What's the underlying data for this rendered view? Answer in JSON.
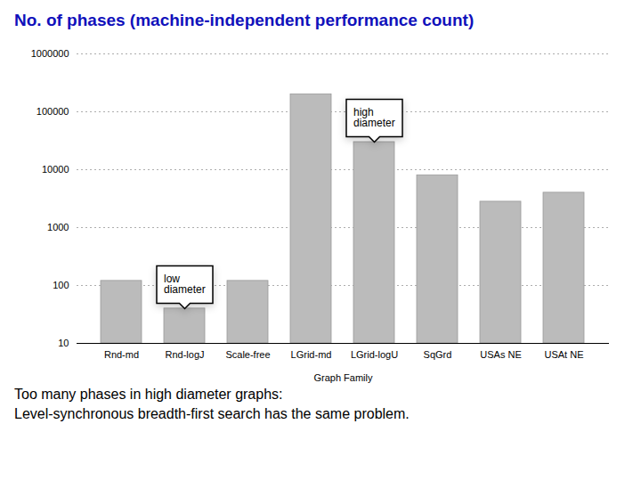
{
  "chart_data": {
    "type": "bar",
    "title": "No. of phases (machine-independent performance count)",
    "xlabel": "Graph Family",
    "categories": [
      "Rnd-md",
      "Rnd-logJ",
      "Scale-free",
      "LGrid-md",
      "LGrid-logU",
      "SqGrd",
      "USAs NE",
      "USAt NE"
    ],
    "values": [
      120,
      40,
      120,
      200000,
      30000,
      8000,
      2800,
      4000
    ],
    "color": "#bbbbbb",
    "log": "y",
    "ylim": [
      10,
      1000000
    ],
    "yticks": [
      10,
      100,
      1000,
      10000,
      100000,
      1000000
    ],
    "grid": true,
    "annotations": [
      {
        "text": "low\ndiameter",
        "category": "Rnd-logJ",
        "value": 40
      },
      {
        "text": "high\ndiameter",
        "category": "LGrid-logU",
        "value": 30000
      }
    ],
    "notes": [
      "Too many phases in high diameter graphs:",
      "Level-synchronous breadth-first search has the same problem."
    ]
  }
}
